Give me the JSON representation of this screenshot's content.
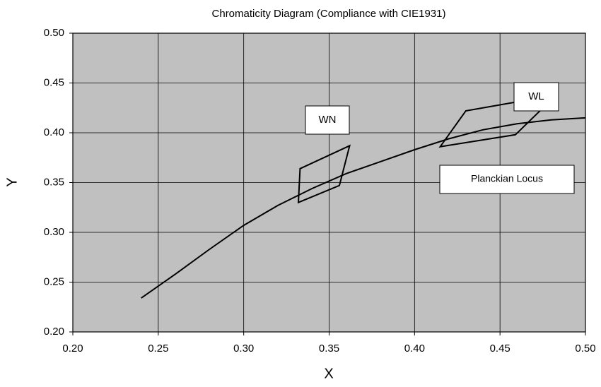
{
  "chart_data": {
    "type": "line",
    "title": "Chromaticity Diagram (Compliance with CIE1931)",
    "x_label": "X",
    "y_label": "Y",
    "xlim": [
      0.2,
      0.5
    ],
    "ylim": [
      0.2,
      0.5
    ],
    "xticks": [
      {
        "value": 0.2,
        "label": "0.20"
      },
      0.25,
      {
        "value": 0.3,
        "label": "0.30"
      },
      0.35,
      {
        "value": 0.4,
        "label": "0.40"
      },
      0.45,
      {
        "value": 0.5,
        "label": "0.50"
      }
    ],
    "yticks": [
      {
        "value": 0.2,
        "label": "0.20"
      },
      0.25,
      {
        "value": 0.3,
        "label": "0.30"
      },
      0.35,
      {
        "value": 0.4,
        "label": "0.40"
      },
      0.45,
      {
        "value": 0.5,
        "label": "0.50"
      }
    ],
    "grid": true,
    "background": "#c0c0c0",
    "series": [
      {
        "name": "Planckian Locus",
        "color": "#000000",
        "closed": false,
        "x": [
          0.24,
          0.26,
          0.28,
          0.3,
          0.32,
          0.34,
          0.36,
          0.38,
          0.4,
          0.42,
          0.44,
          0.46,
          0.48,
          0.5
        ],
        "values": [
          0.234,
          0.258,
          0.283,
          0.307,
          0.327,
          0.344,
          0.359,
          0.371,
          0.383,
          0.394,
          0.403,
          0.409,
          0.413,
          0.415
        ]
      },
      {
        "name": "WN",
        "color": "#000000",
        "closed": true,
        "x": [
          0.333,
          0.362,
          0.356,
          0.332
        ],
        "values": [
          0.364,
          0.387,
          0.347,
          0.33
        ]
      },
      {
        "name": "WL",
        "color": "#000000",
        "closed": true,
        "x": [
          0.43,
          0.483,
          0.459,
          0.415
        ],
        "values": [
          0.422,
          0.438,
          0.398,
          0.386
        ]
      }
    ]
  }
}
